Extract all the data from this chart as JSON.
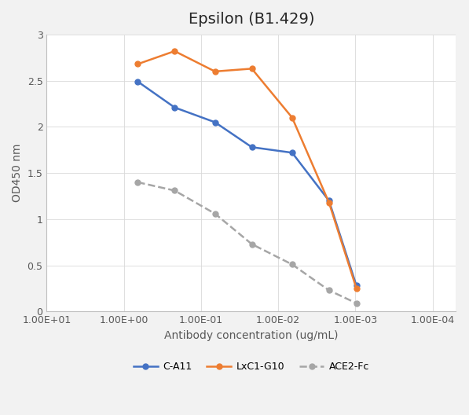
{
  "title": "Epsilon (B1.429)",
  "xlabel": "Antibody concentration (ug/mL)",
  "ylabel": "OD450 nm",
  "series": [
    {
      "name": "C-A11",
      "color": "#4472c4",
      "linestyle": "-",
      "marker": "o",
      "markerfacecolor": "#4472c4",
      "dashed": false,
      "x": [
        0.66,
        0.22,
        0.066,
        0.022,
        0.0066,
        0.0022,
        0.00097
      ],
      "y": [
        2.49,
        2.21,
        2.05,
        1.78,
        1.72,
        1.2,
        0.28
      ]
    },
    {
      "name": "LxC1-G10",
      "color": "#ed7d31",
      "linestyle": "-",
      "marker": "o",
      "markerfacecolor": "#ed7d31",
      "dashed": false,
      "x": [
        0.66,
        0.22,
        0.066,
        0.022,
        0.0066,
        0.0022,
        0.00097
      ],
      "y": [
        2.68,
        2.82,
        2.6,
        2.63,
        2.1,
        1.18,
        0.25
      ]
    },
    {
      "name": "ACE2-Fc",
      "color": "#a6a6a6",
      "linestyle": "--",
      "marker": "o",
      "markerfacecolor": "#a6a6a6",
      "dashed": true,
      "x": [
        0.66,
        0.22,
        0.066,
        0.022,
        0.0066,
        0.0022,
        0.00097
      ],
      "y": [
        1.4,
        1.31,
        1.06,
        0.73,
        0.51,
        0.23,
        0.09
      ]
    }
  ],
  "xlim_left": 10.0,
  "xlim_right": 5e-05,
  "ylim": [
    0,
    3.0
  ],
  "yticks": [
    0,
    0.5,
    1.0,
    1.5,
    2.0,
    2.5,
    3.0
  ],
  "ytick_labels": [
    "0",
    "0.5",
    "1",
    "1.5",
    "2",
    "2.5",
    "3"
  ],
  "xtick_labels": [
    "1.00E+01",
    "1.00E+00",
    "1.00E-01",
    "1.00E-02",
    "1.00E-03",
    "1.00E-04"
  ],
  "xtick_vals": [
    10.0,
    1.0,
    0.1,
    0.01,
    0.001,
    0.0001
  ],
  "grid": true,
  "title_fontsize": 14,
  "axis_label_fontsize": 10,
  "tick_fontsize": 9,
  "legend_fontsize": 9,
  "bg_color": "#f2f2f2",
  "plot_bg_color": "#ffffff"
}
